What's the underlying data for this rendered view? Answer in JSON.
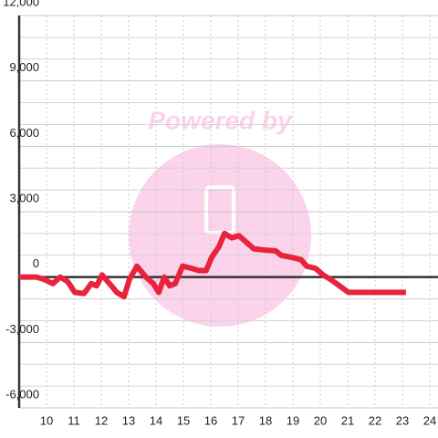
{
  "chart_data": {
    "type": "line",
    "watermark": "Powered by",
    "x": [
      9,
      9.63,
      9.9,
      10.23,
      10.5,
      10.77,
      11.03,
      11.37,
      11.63,
      11.83,
      12.03,
      12.3,
      12.57,
      12.83,
      13.03,
      13.3,
      13.63,
      13.9,
      14.1,
      14.3,
      14.5,
      14.7,
      14.97,
      15.3,
      15.57,
      15.83,
      16.03,
      16.3,
      16.5,
      16.77,
      17.03,
      17.3,
      17.57,
      17.9,
      18.37,
      18.57,
      18.97,
      19.3,
      19.5,
      19.83,
      20.1,
      20.37,
      20.7,
      21.03,
      21.63,
      23.13
    ],
    "series": [
      {
        "color": "#e8233c",
        "values": [
          0,
          0,
          -100,
          -300,
          0,
          -200,
          -700,
          -750,
          -300,
          -400,
          100,
          -300,
          -700,
          -900,
          -100,
          500,
          0,
          -300,
          -700,
          0,
          -400,
          -300,
          500,
          400,
          300,
          300,
          900,
          1400,
          2000,
          1800,
          1900,
          1600,
          1300,
          1250,
          1200,
          1000,
          900,
          800,
          500,
          400,
          100,
          -100,
          -400,
          -700,
          -700,
          -700
        ]
      }
    ],
    "xlim": [
      9,
      24.3
    ],
    "xticks": [
      10,
      11,
      12,
      13,
      14,
      15,
      16,
      17,
      18,
      19,
      20,
      21,
      22,
      23,
      24
    ],
    "ylim": [
      -6000,
      12000
    ],
    "yticks": [
      {
        "value": 12000,
        "label": "12,000"
      },
      {
        "value": 9000,
        "label": "9,000"
      },
      {
        "value": 6000,
        "label": "6,000"
      },
      {
        "value": 3000,
        "label": "3,000"
      },
      0,
      {
        "value": -3000,
        "label": "-3,000"
      },
      {
        "value": -6000,
        "label": "-6,000"
      }
    ],
    "minor_yticks": [
      11000,
      10000,
      8000,
      7000,
      5000,
      4000,
      2000,
      1000,
      -1000,
      -2000,
      -4000,
      -5000
    ],
    "grid": true
  }
}
